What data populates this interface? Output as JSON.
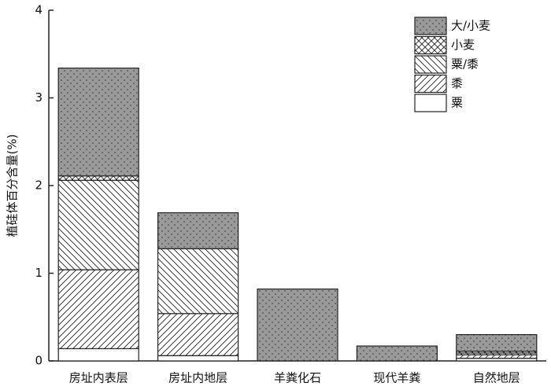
{
  "chart_data": {
    "type": "stacked_bar",
    "y_label": "植硅体百分含量(%)",
    "categories": [
      "房址内表层",
      "房址内地层",
      "羊粪化石",
      "现代羊粪",
      "自然地层"
    ],
    "series": [
      {
        "name": "粟",
        "color": "#ffffff",
        "hatch": "none",
        "values": [
          0.14,
          0.06,
          0,
          0,
          0.03
        ]
      },
      {
        "name": "黍",
        "color": "#ffffff",
        "hatch": "slash",
        "values": [
          0.9,
          0.48,
          0,
          0,
          0.04
        ]
      },
      {
        "name": "粟/黍",
        "color": "#ffffff",
        "hatch": "backslash",
        "values": [
          1.02,
          0.74,
          0,
          0,
          0.02
        ]
      },
      {
        "name": "小麦",
        "color": "#ffffff",
        "hatch": "cross",
        "values": [
          0.05,
          0,
          0,
          0,
          0.02
        ]
      },
      {
        "name": "大/小麦",
        "color": "#9a9a9a",
        "hatch": "dots",
        "values": [
          1.23,
          0.41,
          0.82,
          0.17,
          0.19
        ]
      }
    ],
    "ylim": [
      0,
      4
    ],
    "yticks": [
      0,
      1,
      2,
      3,
      4
    ],
    "legend": "upper right"
  }
}
